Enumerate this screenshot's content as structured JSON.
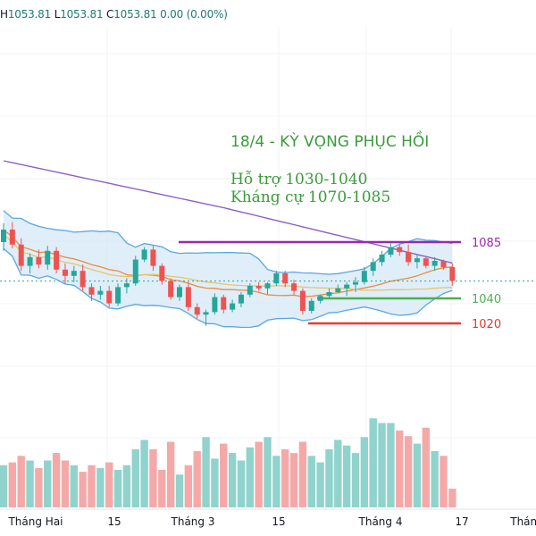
{
  "ohlc": {
    "h_label": "H",
    "h": "1053.81",
    "l_label": "L",
    "l": "1053.81",
    "c_label": "C",
    "c": "1053.81",
    "change": "0.00 (0.00%)"
  },
  "annotations": {
    "title": "18/4 - KỲ VỌNG PHỤC HỒI",
    "support": "Hỗ trợ 1030-1040",
    "resistance": "Kháng cự 1070-1085"
  },
  "colors": {
    "up": "#26a69a",
    "down": "#ef5350",
    "up_volume": "#8fd3cc",
    "down_volume": "#f4a9a8",
    "band_fill": "#d4e8f7",
    "band_line": "#5aa7e0",
    "ma_long": "#8b5fc7",
    "ma_orange": "#ef8a3c",
    "ma_yellow": "#e9c46a",
    "resistance_line": "#9c27b0",
    "support_line": "#4caf50",
    "low_line": "#e53935",
    "text_green": "#3a9b3a"
  },
  "chart_data": {
    "type": "candlestick",
    "x_ticks": [
      "Tháng Hai",
      "15",
      "Tháng 3",
      "15",
      "Tháng 4",
      "17",
      "Tháng"
    ],
    "levels": [
      {
        "label": "1085",
        "value": 1085,
        "color": "#9c27b0"
      },
      {
        "label": "1040",
        "value": 1040,
        "color": "#4caf50"
      },
      {
        "label": "1020",
        "value": 1020,
        "color": "#e53935"
      }
    ],
    "last_price": 1053.81,
    "candles": [
      [
        1085,
        1100,
        1078,
        1095
      ],
      [
        1095,
        1101,
        1080,
        1083
      ],
      [
        1083,
        1088,
        1062,
        1066
      ],
      [
        1066,
        1076,
        1060,
        1073
      ],
      [
        1073,
        1079,
        1064,
        1067
      ],
      [
        1067,
        1082,
        1063,
        1078
      ],
      [
        1078,
        1081,
        1060,
        1063
      ],
      [
        1063,
        1068,
        1052,
        1058
      ],
      [
        1058,
        1066,
        1053,
        1062
      ],
      [
        1062,
        1067,
        1046,
        1049
      ],
      [
        1049,
        1052,
        1038,
        1043
      ],
      [
        1043,
        1050,
        1039,
        1046
      ],
      [
        1046,
        1050,
        1033,
        1036
      ],
      [
        1036,
        1052,
        1034,
        1049
      ],
      [
        1049,
        1056,
        1044,
        1052
      ],
      [
        1052,
        1074,
        1050,
        1071
      ],
      [
        1071,
        1081,
        1069,
        1079
      ],
      [
        1079,
        1082,
        1062,
        1066
      ],
      [
        1066,
        1068,
        1051,
        1054
      ],
      [
        1054,
        1056,
        1039,
        1041
      ],
      [
        1041,
        1051,
        1038,
        1049
      ],
      [
        1049,
        1053,
        1030,
        1033
      ],
      [
        1033,
        1036,
        1024,
        1027
      ],
      [
        1027,
        1031,
        1018,
        1029
      ],
      [
        1029,
        1044,
        1027,
        1041
      ],
      [
        1041,
        1043,
        1028,
        1031
      ],
      [
        1031,
        1039,
        1029,
        1036
      ],
      [
        1036,
        1045,
        1033,
        1043
      ],
      [
        1043,
        1052,
        1041,
        1050
      ],
      [
        1050,
        1053,
        1046,
        1048
      ],
      [
        1048,
        1053,
        1043,
        1052
      ],
      [
        1052,
        1062,
        1050,
        1060
      ],
      [
        1060,
        1062,
        1049,
        1052
      ],
      [
        1052,
        1055,
        1043,
        1046
      ],
      [
        1046,
        1048,
        1027,
        1030
      ],
      [
        1030,
        1040,
        1028,
        1038
      ],
      [
        1038,
        1043,
        1036,
        1042
      ],
      [
        1042,
        1048,
        1040,
        1045
      ],
      [
        1045,
        1051,
        1044,
        1048
      ],
      [
        1048,
        1053,
        1042,
        1051
      ],
      [
        1051,
        1057,
        1045,
        1053
      ],
      [
        1053,
        1065,
        1051,
        1062
      ],
      [
        1062,
        1072,
        1058,
        1069
      ],
      [
        1069,
        1078,
        1066,
        1075
      ],
      [
        1075,
        1084,
        1073,
        1081
      ],
      [
        1081,
        1083,
        1074,
        1077
      ],
      [
        1077,
        1083,
        1066,
        1069
      ],
      [
        1069,
        1075,
        1064,
        1072
      ],
      [
        1072,
        1073,
        1064,
        1066
      ],
      [
        1066,
        1073,
        1062,
        1070
      ],
      [
        1070,
        1071,
        1063,
        1065
      ],
      [
        1065,
        1068,
        1050,
        1054
      ]
    ],
    "volume": [
      0.45,
      0.48,
      0.55,
      0.5,
      0.42,
      0.5,
      0.58,
      0.5,
      0.45,
      0.38,
      0.45,
      0.42,
      0.48,
      0.4,
      0.45,
      0.62,
      0.72,
      0.62,
      0.4,
      0.7,
      0.35,
      0.45,
      0.6,
      0.75,
      0.52,
      0.68,
      0.58,
      0.5,
      0.64,
      0.7,
      0.75,
      0.55,
      0.62,
      0.58,
      0.7,
      0.55,
      0.48,
      0.62,
      0.72,
      0.66,
      0.58,
      0.75,
      0.95,
      0.9,
      0.9,
      0.82,
      0.76,
      0.68,
      0.85,
      0.6,
      0.55,
      0.2
    ]
  }
}
